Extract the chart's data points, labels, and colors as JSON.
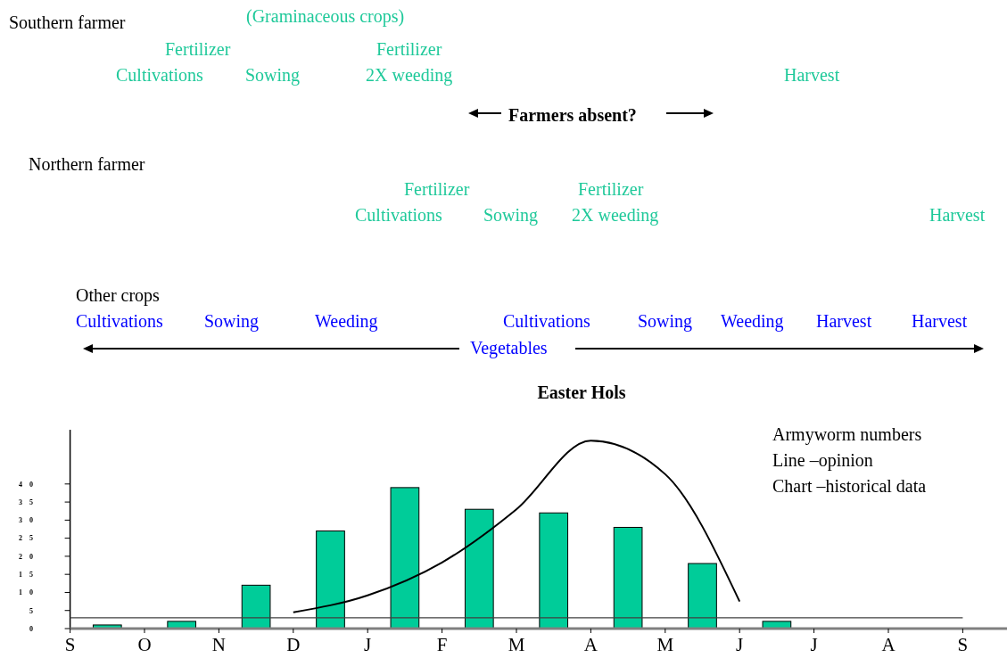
{
  "chart_data": {
    "type": "bar",
    "categories": [
      "S",
      "O",
      "N",
      "D",
      "J",
      "F",
      "M",
      "A",
      "M",
      "J",
      "J",
      "A",
      "S"
    ],
    "series": [
      {
        "color": "#00cc99",
        "values": [
          1,
          2,
          12,
          27,
          39,
          33,
          32,
          28,
          18,
          2,
          0,
          0,
          null
        ]
      },
      {
        "type": "line",
        "color": "#000000",
        "values": [
          null,
          null,
          null,
          4.5,
          9.2,
          18.3,
          33,
          52,
          42.7,
          7.5,
          null,
          null,
          null
        ]
      }
    ],
    "ylim": [
      0,
      55
    ],
    "yticks": [
      0,
      5,
      10,
      15,
      20,
      25,
      30,
      35,
      40
    ],
    "ref_lines": [
      {
        "axis": "y",
        "value": 3,
        "color": "#404040"
      }
    ],
    "marker": "none",
    "line_style": "solid",
    "annotations": [
      "Southern farmer",
      "(Graminaceous crops)",
      "Fertilizer",
      "Cultivations",
      "Sowing",
      "Fertilizer",
      "2X weeding",
      "Harvest",
      "Farmers absent?",
      "Northern farmer",
      "Fertilizer",
      "Cultivations",
      "Sowing",
      "Fertilizer",
      "2X weeding",
      "Harvest",
      "Other crops",
      "Cultivations",
      "Sowing",
      "Weeding",
      "Cultivations",
      "Sowing",
      "Weeding",
      "Harvest",
      "Harvest",
      "Vegetables",
      "Easter Hols",
      "Armyworm numbers",
      "Line –opinion",
      "Chart –historical data"
    ]
  }
}
